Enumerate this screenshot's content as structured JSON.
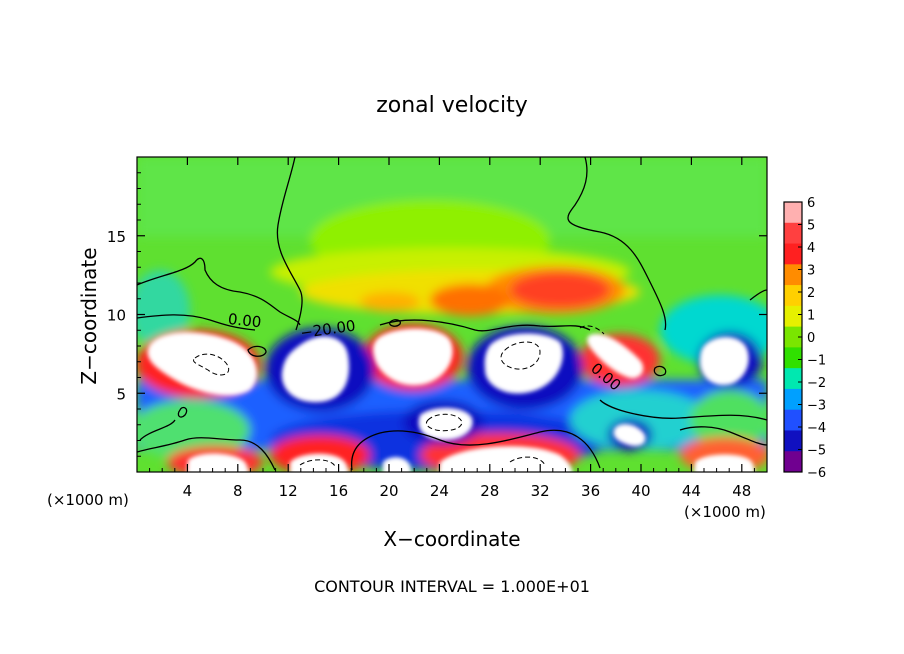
{
  "chart_data": {
    "type": "heatmap",
    "title": "zonal velocity",
    "xlabel": "X−coordinate",
    "ylabel": "Z−coordinate",
    "x_units_left": "(×1000 m)",
    "x_units_right": "(×1000 m)",
    "footer": "CONTOUR INTERVAL = 1.000E+01",
    "xlim": [
      0,
      50
    ],
    "ylim": [
      0,
      20
    ],
    "xticks": [
      4,
      8,
      12,
      16,
      20,
      24,
      28,
      32,
      36,
      40,
      44,
      48
    ],
    "yticks": [
      5,
      10,
      15
    ],
    "colorbar": {
      "min": -6,
      "max": 6,
      "labels": [
        "6",
        "5",
        "4",
        "3",
        "2",
        "1",
        "0",
        "−1",
        "−2",
        "−3",
        "−4",
        "−5",
        "−6"
      ],
      "colors": [
        "#ffb0b0",
        "#ff4040",
        "#ff2020",
        "#ff8c00",
        "#ffd000",
        "#e6f000",
        "#7ae600",
        "#30e000",
        "#00e8b0",
        "#00a0ff",
        "#2050ff",
        "#1010c0",
        "#700090"
      ]
    },
    "contour_labels": [
      {
        "text": "0.00",
        "x": 7.5,
        "z": 9.5
      },
      {
        "text": "−20.00",
        "x": 16.0,
        "z": 9.1
      },
      {
        "text": "0.00",
        "x": 37.3,
        "z": 5.8
      }
    ],
    "saturated_regions_note": "white areas exceed colorbar range (|u| > 6)"
  }
}
